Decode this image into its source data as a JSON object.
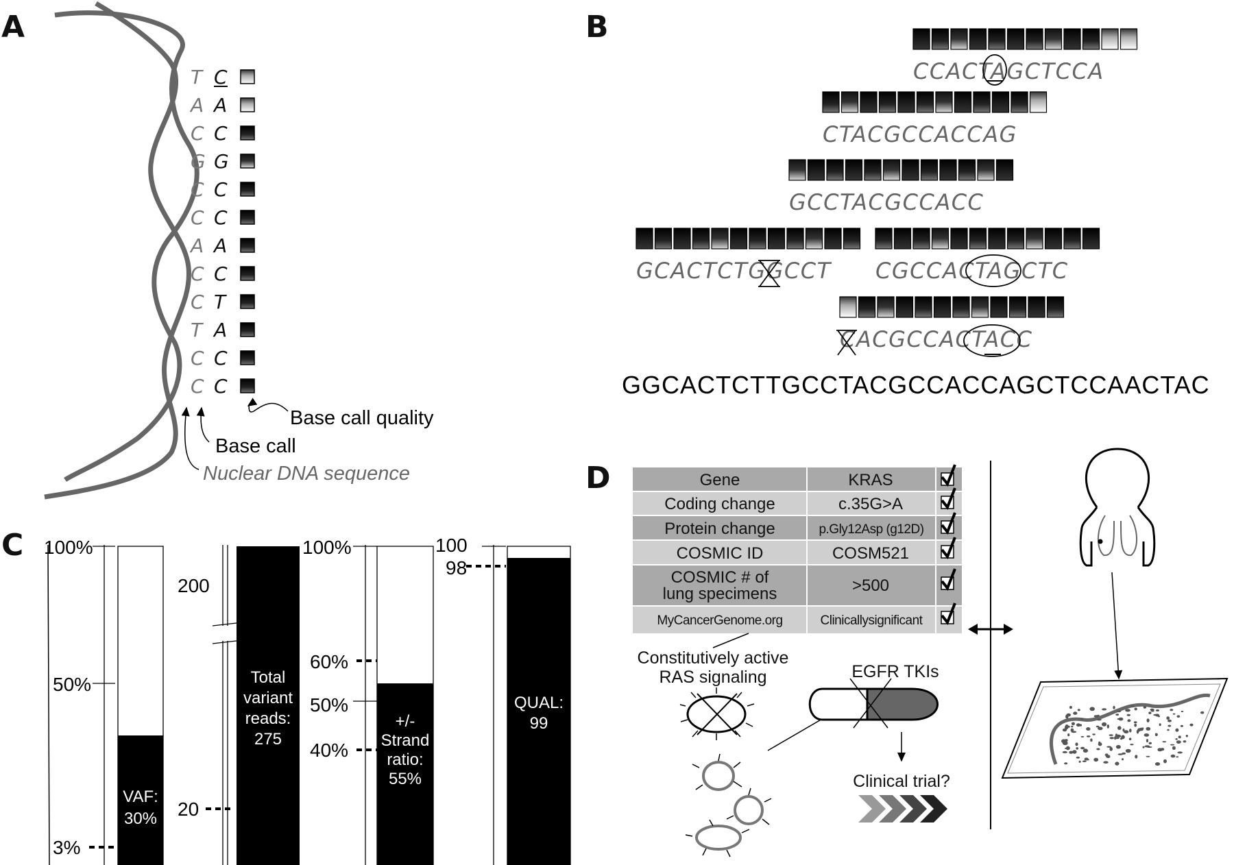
{
  "panels": {
    "a": "A",
    "b": "B",
    "c": "C",
    "d": "D"
  },
  "panel_a": {
    "dna_sequence": [
      "T",
      "A",
      "C",
      "G",
      "C",
      "C",
      "A",
      "C",
      "C",
      "T",
      "C",
      "C"
    ],
    "base_calls": [
      "C",
      "A",
      "C",
      "G",
      "C",
      "C",
      "A",
      "C",
      "T",
      "A",
      "C",
      "C"
    ],
    "label_quality": "Base call quality",
    "label_base_call": "Base call",
    "label_dna": "Nuclear DNA sequence"
  },
  "panel_b": {
    "reads": [
      "CCACTAGCTCCA",
      "CTACGCCACCAG",
      "GCCTACGCCACC",
      "GCACTCTGGCCT",
      "CGCCACTAGCTC",
      "CACGCCACTACC"
    ],
    "reference": "GGCACTCTTGCCTACGCCACCAGCTCCAACTAC"
  },
  "panel_c": {
    "vaf": {
      "ticks": [
        "100%",
        "50%",
        "3%"
      ],
      "label_line1": "VAF:",
      "label_line2": "30%",
      "value": 30
    },
    "reads": {
      "ticks": [
        "200",
        "20"
      ],
      "label_line1": "Total",
      "label_line2": "variant",
      "label_line3": "reads:",
      "label_line4": "275",
      "value": 275
    },
    "strand": {
      "ticks": [
        "100%",
        "60%",
        "50%",
        "40%"
      ],
      "label_line1": "+/-",
      "label_line2": "Strand",
      "label_line3": "ratio:",
      "label_line4": "55%",
      "value": 55
    },
    "qual": {
      "ticks": [
        "100",
        "98"
      ],
      "label_line1": "QUAL:",
      "label_line2": "99",
      "value": 99
    }
  },
  "panel_d": {
    "table": [
      {
        "field": "Gene",
        "value": "KRAS"
      },
      {
        "field": "Coding change",
        "value": "c.35G>A"
      },
      {
        "field": "Protein change",
        "value": "p.Gly12Asp (g12D)"
      },
      {
        "field": "COSMIC ID",
        "value": "COSM521"
      },
      {
        "field_line1": "COSMIC # of",
        "field_line2": "lung specimens",
        "value": ">500"
      },
      {
        "field": "MyCancerGenome.org",
        "value": "Clinicallysignificant"
      }
    ],
    "label_ras_line1": "Constitutively active",
    "label_ras_line2": "RAS signaling",
    "label_tki": "EGFR TKIs",
    "label_trial": "Clinical trial?"
  }
}
